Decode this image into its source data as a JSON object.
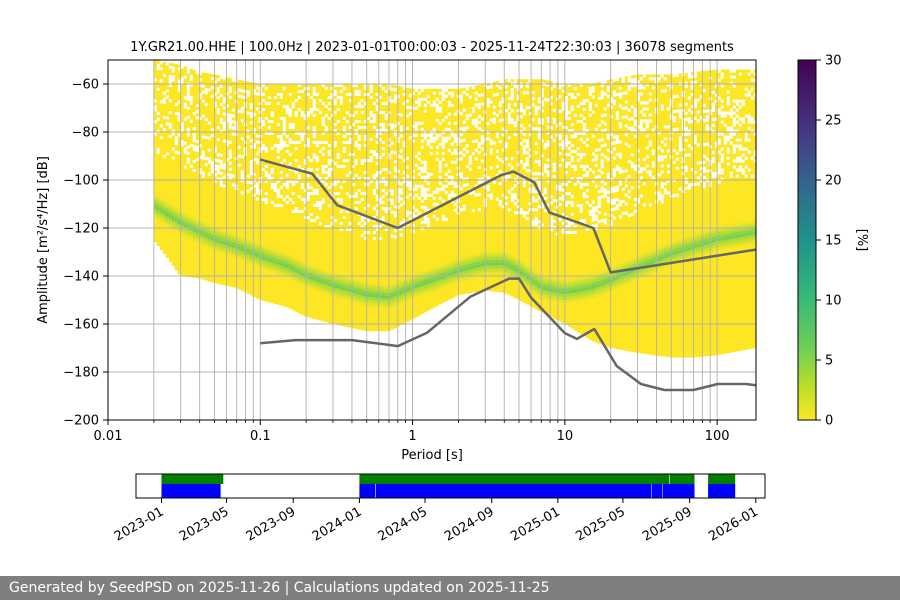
{
  "chart_data": {
    "type": "heatmap",
    "title": "1Y.GR21.00.HHE | 100.0Hz | 2023-01-01T00:00:03 - 2025-11-24T22:30:03 | 36078 segments",
    "xlabel": "Period [s]",
    "ylabel": "Amplitude [m²/s⁴/Hz] [dB]",
    "xscale": "log",
    "xlim": [
      0.01,
      180
    ],
    "ylim": [
      -200,
      -50
    ],
    "xticks": [
      {
        "value": 0.01,
        "label": "0.01"
      },
      {
        "value": 0.1,
        "label": "0.1"
      },
      {
        "value": 1,
        "label": "1"
      },
      {
        "value": 10,
        "label": "10"
      },
      {
        "value": 100,
        "label": "100"
      }
    ],
    "yticks": [
      {
        "value": -60,
        "label": "−60"
      },
      {
        "value": -80,
        "label": "−80"
      },
      {
        "value": -100,
        "label": "−100"
      },
      {
        "value": -120,
        "label": "−120"
      },
      {
        "value": -140,
        "label": "−140"
      },
      {
        "value": -160,
        "label": "−160"
      },
      {
        "value": -180,
        "label": "−180"
      },
      {
        "value": -200,
        "label": "−200"
      }
    ],
    "psd_periods": [
      0.02,
      0.03,
      0.04,
      0.05,
      0.07,
      0.1,
      0.15,
      0.2,
      0.3,
      0.5,
      0.7,
      1,
      1.5,
      2,
      3,
      4,
      5,
      7,
      10,
      15,
      20,
      30,
      50,
      70,
      100,
      180
    ],
    "psd_envelope": {
      "upper": [
        -50,
        -52,
        -55,
        -56,
        -58,
        -60,
        -60,
        -60,
        -60,
        -60,
        -60,
        -62,
        -62,
        -62,
        -60,
        -58,
        -58,
        -58,
        -60,
        -60,
        -58,
        -56,
        -56,
        -55,
        -54,
        -54
      ],
      "lower": [
        -125,
        -140,
        -141,
        -143,
        -145,
        -150,
        -153,
        -157,
        -160,
        -163,
        -163,
        -158,
        -152,
        -148,
        -146,
        -147,
        -150,
        -155,
        -160,
        -167,
        -170,
        -172,
        -174,
        -174,
        -173,
        -170
      ]
    },
    "psd_mode": [
      -110,
      -117,
      -121,
      -124,
      -127,
      -131,
      -135,
      -139,
      -143,
      -147,
      -148,
      -144,
      -140,
      -137,
      -134,
      -134,
      -137,
      -144,
      -146,
      -144,
      -141,
      -136,
      -130,
      -127,
      -124,
      -121
    ],
    "noise_models": [
      {
        "name": "New High Noise Model",
        "x": [
          0.1,
          0.22,
          0.32,
          0.8,
          3.8,
          4.6,
          6.3,
          7.9,
          15.4,
          20,
          180
        ],
        "y": [
          -91.5,
          -97.4,
          -110.5,
          -120,
          -98,
          -96.5,
          -101,
          -113.5,
          -120,
          -138.5,
          -129
        ]
      },
      {
        "name": "New Low Noise Model",
        "x": [
          0.1,
          0.17,
          0.4,
          0.8,
          1.24,
          2.4,
          4.3,
          5,
          6,
          10,
          12,
          15.6,
          21.9,
          31.6,
          45,
          70,
          101,
          154,
          180
        ],
        "y": [
          -168,
          -166.7,
          -166.7,
          -169.2,
          -163.7,
          -148.6,
          -141.1,
          -141.1,
          -149,
          -163.8,
          -166.2,
          -162.1,
          -177.5,
          -185,
          -187.5,
          -187.5,
          -185,
          -185,
          -185.5
        ]
      }
    ],
    "colorbar": {
      "label": "[%]",
      "min": 0,
      "max": 30,
      "ticks": [
        "0",
        "5",
        "10",
        "15",
        "20",
        "25",
        "30"
      ]
    },
    "availability": {
      "xticks": [
        "2023-01",
        "2023-05",
        "2023-09",
        "2024-01",
        "2024-05",
        "2024-09",
        "2025-01",
        "2025-05",
        "2025-09",
        "2026-01"
      ],
      "blue_segments": [
        [
          "2023-01-01",
          "2023-04-20"
        ],
        [
          "2024-01-01",
          "2024-01-30"
        ],
        [
          "2024-01-31",
          "2025-06-22"
        ],
        [
          "2025-06-23",
          "2025-07-12"
        ],
        [
          "2025-07-13",
          "2025-09-10"
        ],
        [
          "2025-10-05",
          "2025-11-24"
        ]
      ],
      "green_segments": [
        [
          "2023-01-01",
          "2023-04-25"
        ],
        [
          "2024-01-01",
          "2025-07-25"
        ],
        [
          "2025-07-26",
          "2025-09-10"
        ],
        [
          "2025-10-05",
          "2025-11-24"
        ]
      ]
    }
  },
  "footer": {
    "text": "Generated by SeedPSD on 2025-11-26 | Calculations updated on 2025-11-25"
  }
}
